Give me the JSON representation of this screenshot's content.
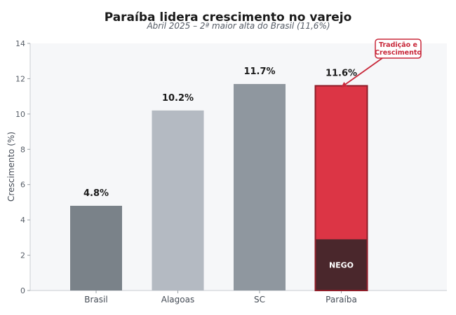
{
  "chart_data": {
    "type": "bar",
    "title": "Paraíba lidera crescimento no varejo",
    "subtitle": "Abril 2025 – 2ª maior alta do Brasil (11,6%)",
    "xlabel": "",
    "ylabel": "Crescimento (%)",
    "ylim": [
      0,
      14
    ],
    "yticks": [
      0,
      2,
      4,
      6,
      8,
      10,
      12,
      14
    ],
    "ytick_labels": [
      "0",
      "2",
      "4",
      "6",
      "8",
      "10",
      "12",
      "14"
    ],
    "grid": false,
    "categories": [
      "Brasil",
      "Alagoas",
      "SC",
      "Paraíba"
    ],
    "values": [
      4.8,
      10.2,
      11.7,
      11.6
    ],
    "value_labels": [
      "4.8%",
      "10.2%",
      "11.7%",
      "11.6%"
    ],
    "bar_colors": [
      "#7a8289",
      "#b4bac2",
      "#8f979f",
      "#dc3545"
    ],
    "highlight": {
      "category": "Paraíba",
      "label_color": "#b0202e",
      "segment": {
        "label": "NEGO",
        "value": 2.9,
        "color": "#4a272c"
      }
    },
    "annotation": {
      "text_lines": [
        "Tradição e",
        "Crescimento"
      ],
      "target_category": "Paraíba",
      "color": "#c8283a"
    }
  }
}
